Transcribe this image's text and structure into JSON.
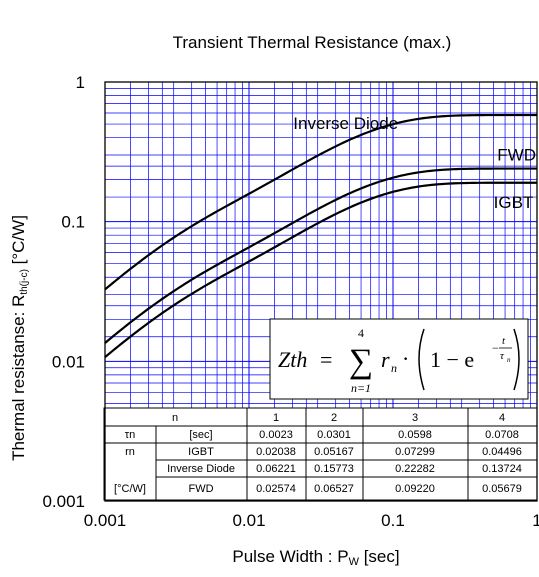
{
  "chart_data": {
    "type": "line",
    "title": "Transient Thermal Resistance (max.)",
    "xlabel": {
      "main": "Pulse Width : P",
      "sub": "W",
      "unit": " [sec]"
    },
    "ylabel": {
      "main": "Thermal resistanse: R",
      "sub": "th(j-c)",
      "unit": " [°C/W]"
    },
    "x_scale": "log",
    "y_scale": "log",
    "xlim": [
      0.001,
      1
    ],
    "ylim": [
      0.001,
      1
    ],
    "x_ticks": [
      {
        "value": 0.001,
        "label": "0.001"
      },
      {
        "value": 0.01,
        "label": "0.01"
      },
      {
        "value": 0.1,
        "label": "0.1"
      },
      {
        "value": 1,
        "label": "1"
      }
    ],
    "y_ticks": [
      {
        "value": 0.001,
        "label": "0.001"
      },
      {
        "value": 0.01,
        "label": "0.01"
      },
      {
        "value": 0.1,
        "label": "0.1"
      },
      {
        "value": 1,
        "label": "1"
      }
    ],
    "grid": true,
    "grid_color": "#0000ff",
    "series": [
      {
        "name": "Inverse Diode",
        "r": [
          0.06221,
          0.15773,
          0.22282,
          0.13724
        ],
        "tau": [
          0.0023,
          0.0301,
          0.0598,
          0.0708
        ],
        "label_at": [
          0.0203,
          0.46
        ]
      },
      {
        "name": "FWD",
        "r": [
          0.02574,
          0.06527,
          0.0922,
          0.05679
        ],
        "tau": [
          0.0023,
          0.0301,
          0.0598,
          0.0708
        ],
        "label_at": [
          0.53,
          0.275
        ]
      },
      {
        "name": "IGBT",
        "r": [
          0.02038,
          0.05167,
          0.07299,
          0.04496
        ],
        "tau": [
          0.0023,
          0.0301,
          0.0598,
          0.0708
        ],
        "label_at": [
          0.5,
          0.125
        ]
      }
    ],
    "formula": {
      "lhs": "Zth",
      "eq": "=",
      "sum": "∑",
      "upper": "4",
      "lower": "n=1",
      "r": "r",
      "sub_n": "n",
      "dot": "·",
      "one_minus": "1 − e",
      "t": "t",
      "tau": "τ"
    },
    "table": {
      "header": [
        "n",
        "1",
        "2",
        "3",
        "4"
      ],
      "rows": [
        [
          "τn",
          "[sec]",
          "0.0023",
          "0.0301",
          "0.0598",
          "0.0708"
        ],
        [
          "rn",
          "IGBT",
          "0.02038",
          "0.05167",
          "0.07299",
          "0.04496"
        ],
        [
          "",
          "Inverse Diode",
          "0.06221",
          "0.15773",
          "0.22282",
          "0.13724"
        ],
        [
          "[°C/W]",
          "FWD",
          "0.02574",
          "0.06527",
          "0.09220",
          "0.05679"
        ]
      ]
    }
  }
}
